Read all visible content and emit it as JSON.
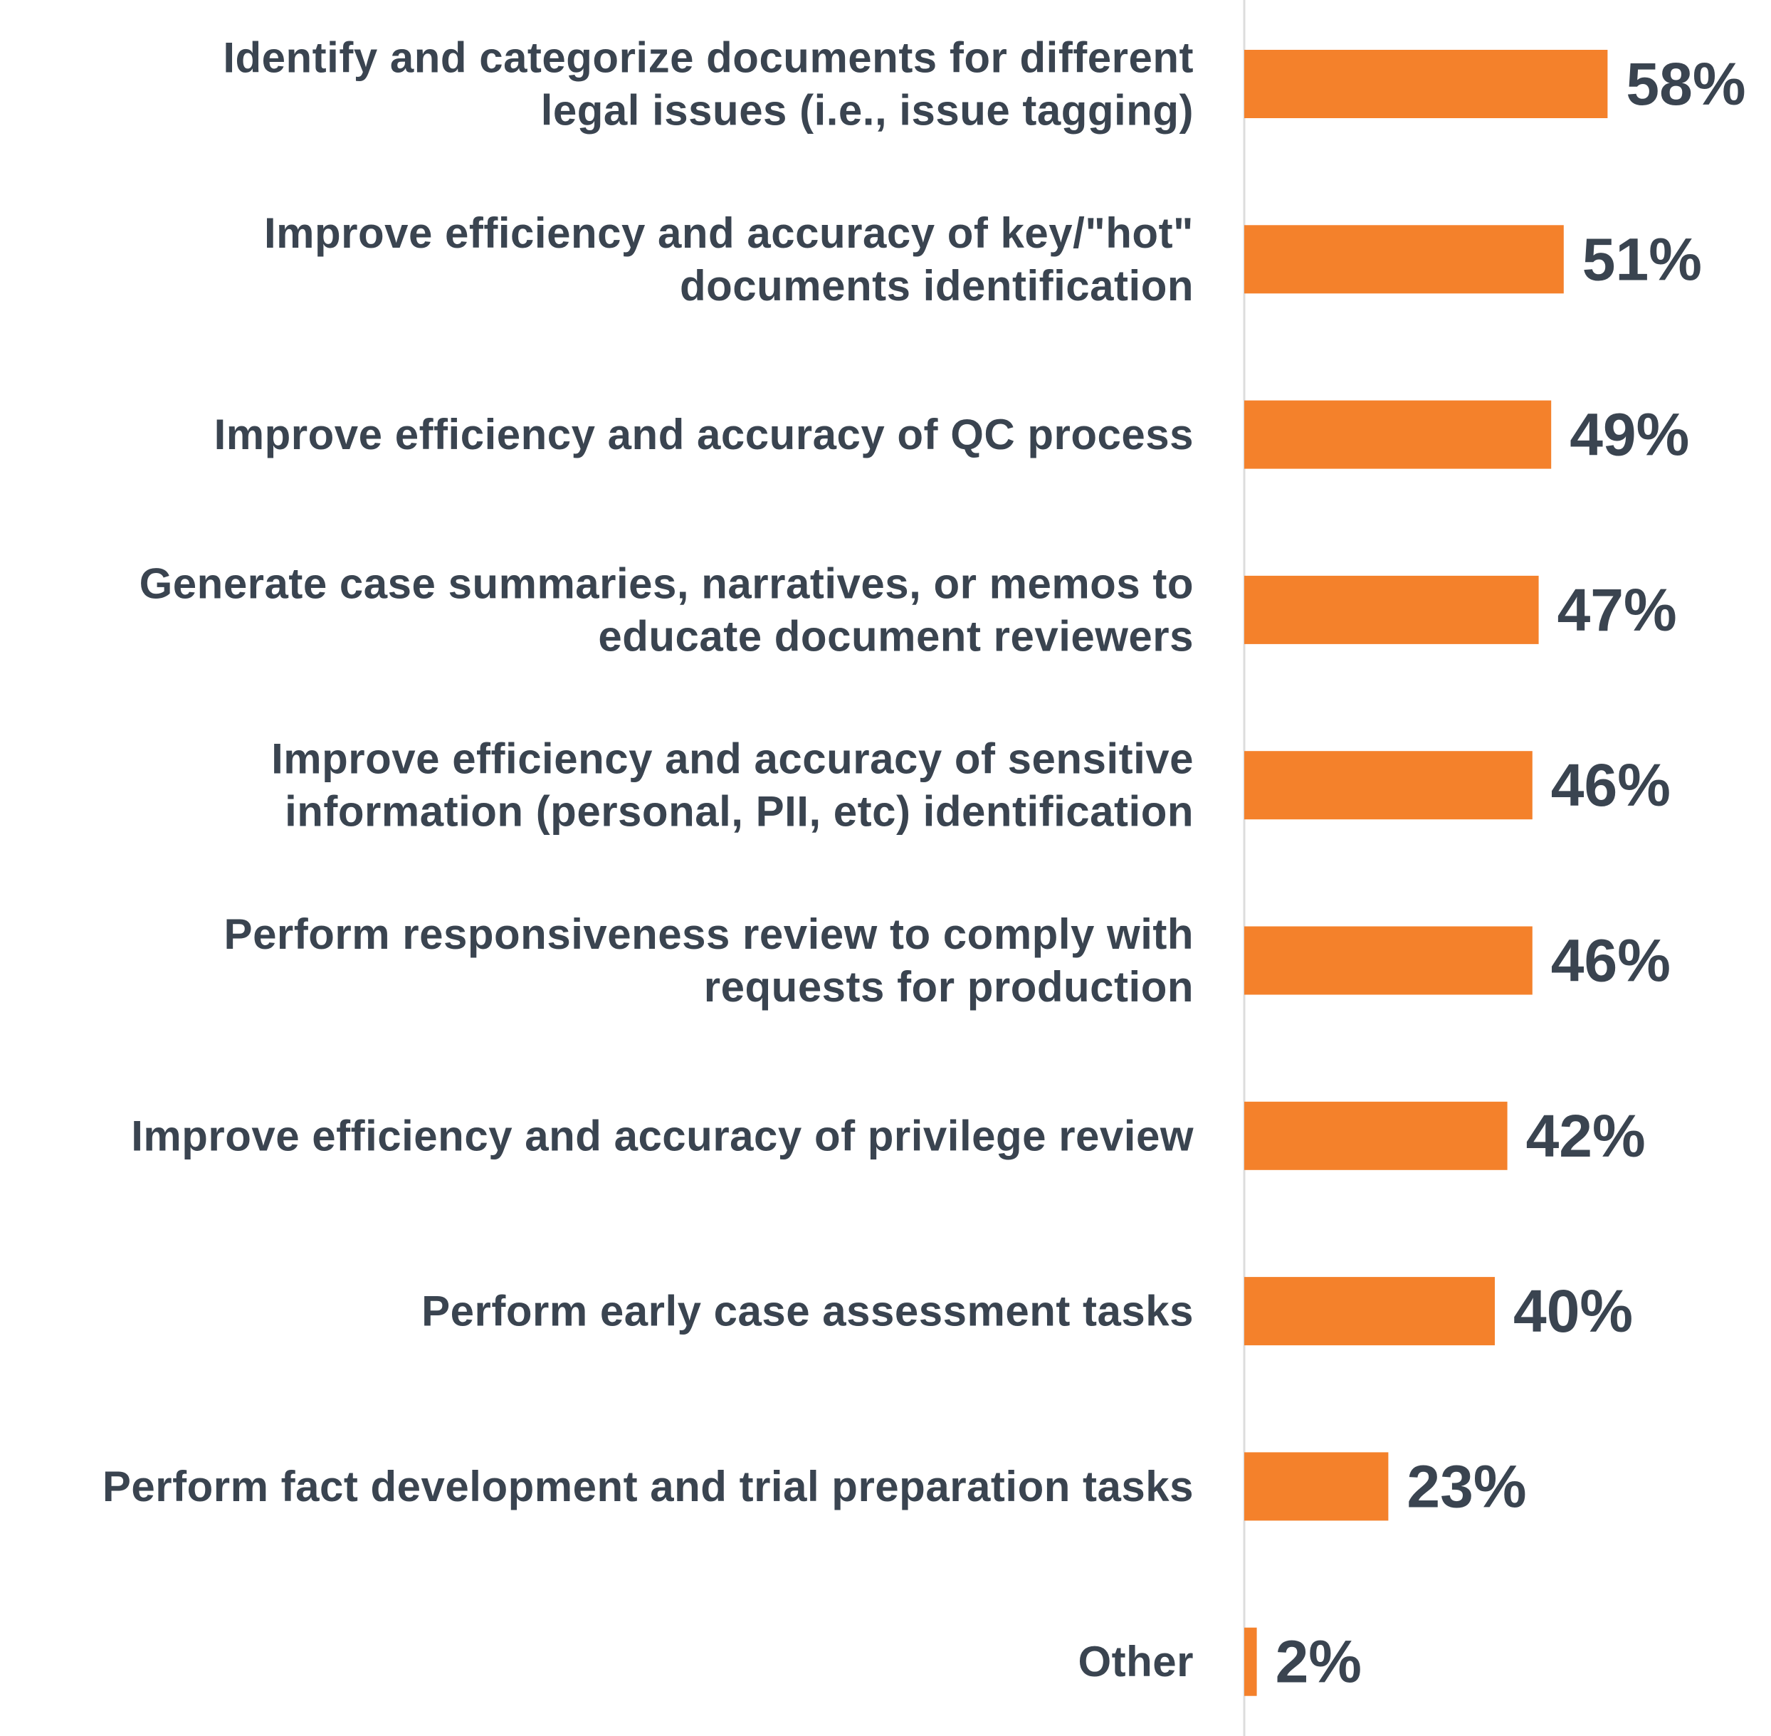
{
  "chart_data": {
    "type": "bar",
    "orientation": "horizontal",
    "title": "",
    "xlabel": "",
    "ylabel": "",
    "categories": [
      [
        "Identify and categorize documents for different",
        "legal issues (i.e., issue tagging)"
      ],
      [
        "Improve efficiency and accuracy of key/\"hot\"",
        "documents identification"
      ],
      [
        "Improve efficiency and accuracy of QC process"
      ],
      [
        "Generate case summaries, narratives, or memos to",
        "educate document reviewers"
      ],
      [
        "Improve efficiency and accuracy of sensitive",
        "information (personal, PII, etc) identification"
      ],
      [
        "Perform responsiveness review to comply with",
        "requests for production"
      ],
      [
        "Improve efficiency and accuracy of privilege review"
      ],
      [
        "Perform early case assessment tasks"
      ],
      [
        "Perform fact development and trial preparation tasks"
      ],
      [
        "Other"
      ]
    ],
    "values": [
      58,
      51,
      49,
      47,
      46,
      46,
      42,
      40,
      23,
      2
    ],
    "value_labels": [
      "58%",
      "51%",
      "49%",
      "47%",
      "46%",
      "46%",
      "42%",
      "40%",
      "23%",
      "2%"
    ],
    "unit": "%",
    "xlim": [
      0,
      100
    ],
    "grid": false,
    "legend": "none",
    "colors": {
      "bar": "#F4812B",
      "text": "#3A4450",
      "axis": "#DDDDDD"
    }
  }
}
